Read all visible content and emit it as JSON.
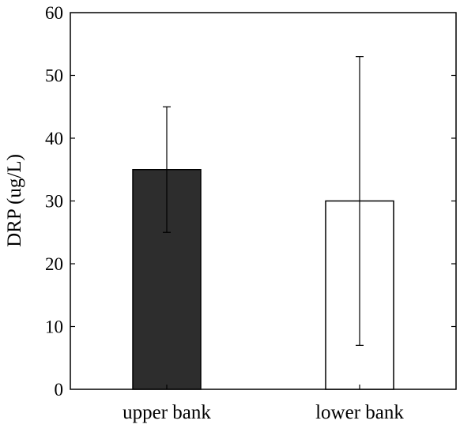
{
  "chart_data": {
    "type": "bar",
    "title": "",
    "xlabel": "",
    "ylabel": "DRP (ug/L)",
    "categories": [
      "upper bank",
      "lower bank"
    ],
    "values": [
      35,
      30
    ],
    "error_low": [
      25,
      7
    ],
    "error_high": [
      45,
      53
    ],
    "bar_colors": [
      "#2d2d2d",
      "#ffffff"
    ],
    "ylim": [
      0,
      60
    ],
    "yticks": [
      0,
      10,
      20,
      30,
      40,
      50,
      60
    ],
    "grid": false,
    "legend": "none"
  }
}
